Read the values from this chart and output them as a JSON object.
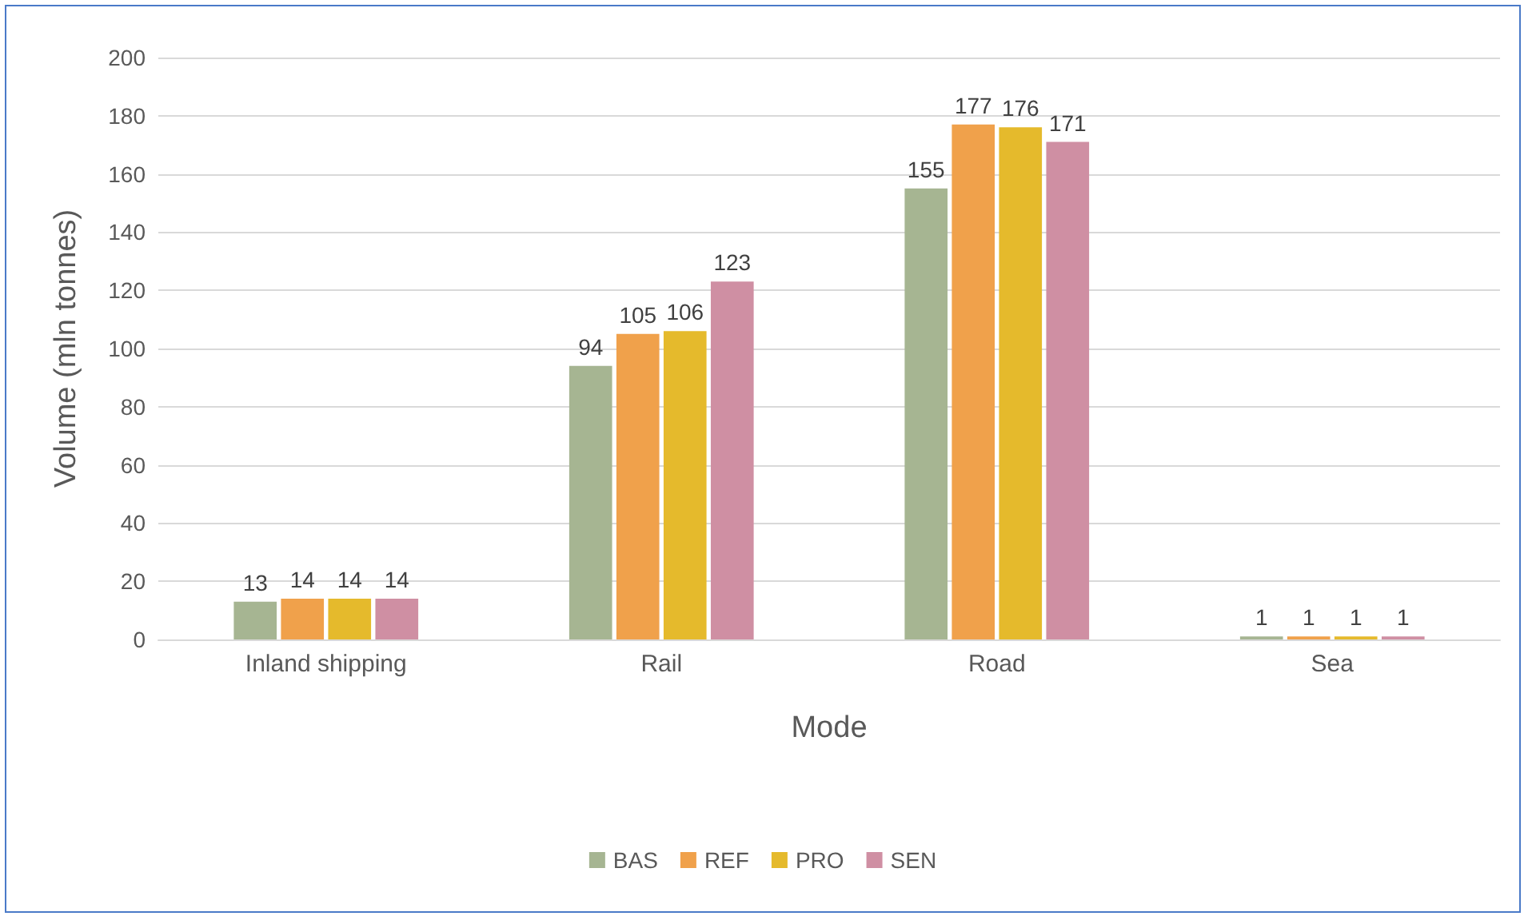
{
  "chart_data": {
    "type": "bar",
    "xlabel": "Mode",
    "ylabel": "Volume (mln tonnes)",
    "categories": [
      "Inland shipping",
      "Rail",
      "Road",
      "Sea"
    ],
    "series": [
      {
        "name": "BAS",
        "color": "#a6b592",
        "values": [
          13,
          94,
          155,
          1
        ]
      },
      {
        "name": "REF",
        "color": "#f0a14b",
        "values": [
          14,
          105,
          177,
          1
        ]
      },
      {
        "name": "PRO",
        "color": "#e5ba2c",
        "values": [
          14,
          106,
          176,
          1
        ]
      },
      {
        "name": "SEN",
        "color": "#cf8fa3",
        "values": [
          14,
          123,
          171,
          1
        ]
      }
    ],
    "ylim": [
      0,
      200
    ],
    "yticks": [
      0,
      20,
      40,
      60,
      80,
      100,
      120,
      140,
      160,
      180,
      200
    ],
    "grid": "y",
    "legend": "bottom",
    "data_labels": true
  }
}
